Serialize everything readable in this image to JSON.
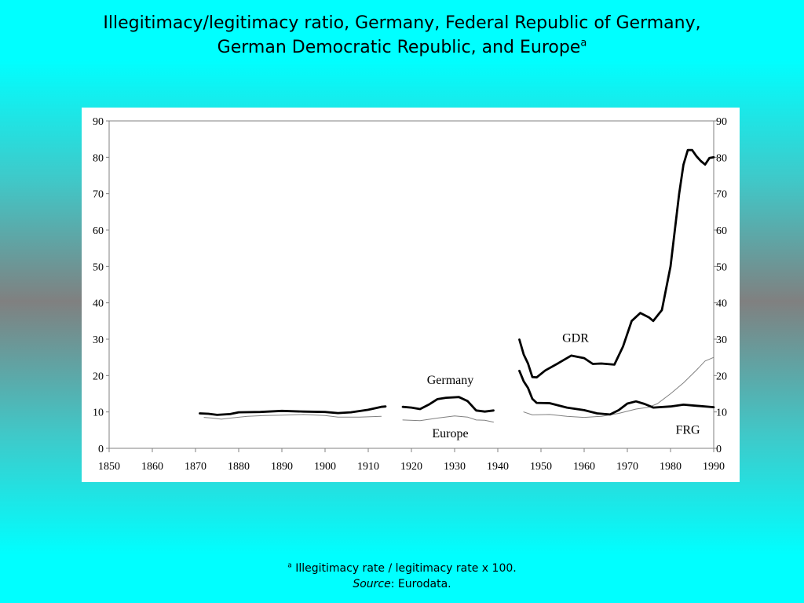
{
  "slide": {
    "title_line1": "Illegitimacy/legitimacy ratio, Germany, Federal Republic of Germany,",
    "title_line2": "German Democratic Republic, and Europe",
    "title_superscript": "a",
    "footnote_marker": "a",
    "footnote_text": " Illegitimacy rate / legitimacy rate x 100.",
    "source_label": "Source",
    "source_text": ": Eurodata."
  },
  "colors": {
    "background_top": "#00ffff",
    "background_middle": "#808080",
    "panel": "#ffffff",
    "thick_series": "#000000",
    "thin_series": "#808080"
  },
  "chart_data": {
    "type": "line",
    "title": "",
    "xlabel": "",
    "ylabel": "",
    "xlim": [
      1850,
      1990
    ],
    "ylim": [
      0,
      90
    ],
    "x_ticks": [
      1850,
      1860,
      1870,
      1880,
      1890,
      1900,
      1910,
      1920,
      1930,
      1940,
      1950,
      1960,
      1970,
      1980,
      1990
    ],
    "y_ticks": [
      0,
      10,
      20,
      30,
      40,
      50,
      60,
      70,
      80,
      90
    ],
    "secondary_y_axis": true,
    "grid": false,
    "legend": "none (series labelled inline)",
    "annotations": [
      {
        "text": "Germany",
        "x": 1929,
        "y": 17.7
      },
      {
        "text": "Europe",
        "x": 1929,
        "y": 3
      },
      {
        "text": "GDR",
        "x": 1958,
        "y": 29.2
      },
      {
        "text": "FRG",
        "x": 1984,
        "y": 4
      }
    ],
    "series": [
      {
        "name": "Germany",
        "style": "thick",
        "segments": [
          [
            [
              1871,
              9.6
            ],
            [
              1873,
              9.5
            ],
            [
              1875,
              9.2
            ],
            [
              1878,
              9.4
            ],
            [
              1880,
              9.9
            ],
            [
              1885,
              10.0
            ],
            [
              1890,
              10.3
            ],
            [
              1895,
              10.1
            ],
            [
              1900,
              10.0
            ],
            [
              1903,
              9.7
            ],
            [
              1906,
              9.9
            ],
            [
              1910,
              10.6
            ],
            [
              1913,
              11.4
            ],
            [
              1914,
              11.5
            ]
          ],
          [
            [
              1918,
              11.4
            ],
            [
              1920,
              11.2
            ],
            [
              1922,
              10.8
            ],
            [
              1924,
              12.0
            ],
            [
              1926,
              13.5
            ],
            [
              1928,
              13.9
            ],
            [
              1931,
              14.1
            ],
            [
              1933,
              13.0
            ],
            [
              1935,
              10.4
            ],
            [
              1937,
              10.1
            ],
            [
              1939,
              10.4
            ]
          ]
        ]
      },
      {
        "name": "Europe",
        "style": "thin",
        "segments": [
          [
            [
              1872,
              8.5
            ],
            [
              1874,
              8.3
            ],
            [
              1876,
              8.0
            ],
            [
              1878,
              8.3
            ],
            [
              1882,
              8.8
            ],
            [
              1886,
              9.0
            ],
            [
              1890,
              9.1
            ],
            [
              1895,
              9.3
            ],
            [
              1900,
              9.0
            ],
            [
              1903,
              8.6
            ],
            [
              1908,
              8.6
            ],
            [
              1913,
              8.8
            ]
          ],
          [
            [
              1918,
              7.8
            ],
            [
              1922,
              7.6
            ],
            [
              1926,
              8.3
            ],
            [
              1930,
              8.9
            ],
            [
              1933,
              8.6
            ],
            [
              1935,
              7.8
            ],
            [
              1937,
              7.7
            ],
            [
              1939,
              7.2
            ]
          ],
          [
            [
              1946,
              10.0
            ],
            [
              1948,
              9.2
            ],
            [
              1952,
              9.3
            ],
            [
              1956,
              8.8
            ],
            [
              1960,
              8.5
            ],
            [
              1964,
              8.8
            ],
            [
              1968,
              9.6
            ],
            [
              1972,
              10.8
            ],
            [
              1975,
              11.3
            ],
            [
              1977,
              12.3
            ],
            [
              1980,
              15.0
            ],
            [
              1983,
              18.0
            ],
            [
              1986,
              21.5
            ],
            [
              1988,
              24.0
            ],
            [
              1990,
              25.0
            ]
          ]
        ]
      },
      {
        "name": "GDR",
        "style": "thick",
        "segments": [
          [
            [
              1945,
              29.9
            ],
            [
              1946,
              25.8
            ],
            [
              1947,
              23.3
            ],
            [
              1948,
              19.6
            ],
            [
              1949,
              19.5
            ],
            [
              1951,
              21.4
            ],
            [
              1954,
              23.4
            ],
            [
              1957,
              25.5
            ],
            [
              1960,
              24.8
            ],
            [
              1962,
              23.2
            ],
            [
              1964,
              23.3
            ],
            [
              1967,
              23.0
            ],
            [
              1969,
              28.0
            ],
            [
              1971,
              35.0
            ],
            [
              1973,
              37.2
            ],
            [
              1975,
              36.0
            ],
            [
              1976,
              35.0
            ],
            [
              1978,
              38.0
            ],
            [
              1980,
              50.0
            ],
            [
              1981,
              60.0
            ],
            [
              1982,
              70.0
            ],
            [
              1983,
              78.0
            ],
            [
              1984,
              82.0
            ],
            [
              1985,
              82.0
            ],
            [
              1986,
              80.3
            ],
            [
              1987,
              79.0
            ],
            [
              1988,
              78.0
            ],
            [
              1989,
              79.8
            ],
            [
              1990,
              80.0
            ]
          ]
        ]
      },
      {
        "name": "FRG",
        "style": "thick",
        "segments": [
          [
            [
              1945,
              21.3
            ],
            [
              1946,
              18.4
            ],
            [
              1947,
              16.6
            ],
            [
              1948,
              13.6
            ],
            [
              1949,
              12.5
            ],
            [
              1952,
              12.4
            ],
            [
              1956,
              11.2
            ],
            [
              1960,
              10.5
            ],
            [
              1963,
              9.6
            ],
            [
              1966,
              9.3
            ],
            [
              1968,
              10.5
            ],
            [
              1970,
              12.3
            ],
            [
              1972,
              12.9
            ],
            [
              1974,
              12.2
            ],
            [
              1976,
              11.2
            ],
            [
              1980,
              11.5
            ],
            [
              1983,
              12.0
            ],
            [
              1986,
              11.7
            ],
            [
              1990,
              11.3
            ]
          ]
        ]
      }
    ]
  }
}
